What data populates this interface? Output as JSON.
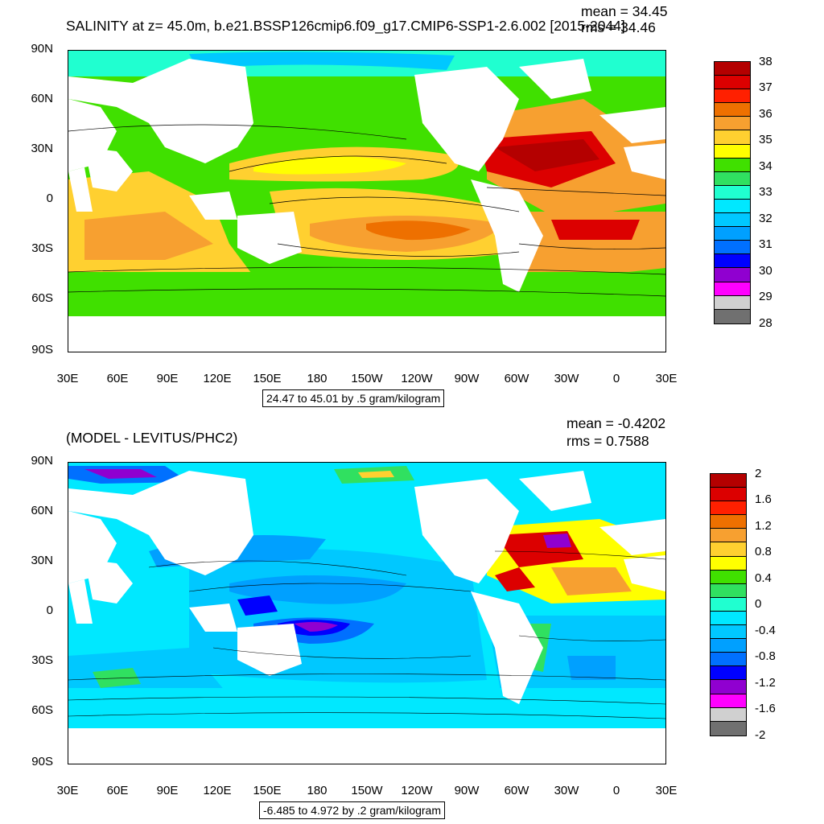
{
  "top": {
    "title": "SALINITY at z=  45.0m, b.e21.BSSP126cmip6.f09_g17.CMIP6-SSP1-2.6.002 [2015-2044]",
    "mean": "mean = 34.45",
    "rms": "rms = 34.46",
    "info": "24.47 to 45.01 by .5 gram/kilogram",
    "colorbar": {
      "labels": [
        "38",
        "37",
        "36",
        "35",
        "34",
        "33",
        "32",
        "31",
        "30",
        "29",
        "28"
      ],
      "colors": [
        "#b40000",
        "#dc0000",
        "#ff2000",
        "#ee7000",
        "#f7a030",
        "#ffd030",
        "#ffff00",
        "#40e000",
        "#30e060",
        "#20ffd0",
        "#00e8ff",
        "#00c8ff",
        "#00a0ff",
        "#0070ff",
        "#0000ff",
        "#9000d0",
        "#ff00ff",
        "#d0d0d0",
        "#707070"
      ]
    }
  },
  "bottom": {
    "title": "(MODEL - LEVITUS/PHC2)",
    "mean": "mean = -0.4202",
    "rms": "rms = 0.7588",
    "info": "-6.485 to 4.972 by .2 gram/kilogram",
    "colorbar": {
      "labels": [
        "2",
        "1.6",
        "1.2",
        "0.8",
        "0.4",
        "0",
        "-0.4",
        "-0.8",
        "-1.2",
        "-1.6",
        "-2"
      ],
      "colors": [
        "#b40000",
        "#dc0000",
        "#ff2000",
        "#ee7000",
        "#f7a030",
        "#ffd030",
        "#ffff00",
        "#40e000",
        "#30e060",
        "#20ffd0",
        "#00e8ff",
        "#00c8ff",
        "#00a0ff",
        "#0070ff",
        "#0000ff",
        "#9000d0",
        "#ff00ff",
        "#d0d0d0",
        "#707070"
      ]
    }
  },
  "axes": {
    "y_labels": [
      "90N",
      "60N",
      "30N",
      "0",
      "30S",
      "60S",
      "90S"
    ],
    "x_labels": [
      "30E",
      "60E",
      "90E",
      "120E",
      "150E",
      "180",
      "150W",
      "120W",
      "90W",
      "60W",
      "30W",
      "0",
      "30E"
    ]
  }
}
